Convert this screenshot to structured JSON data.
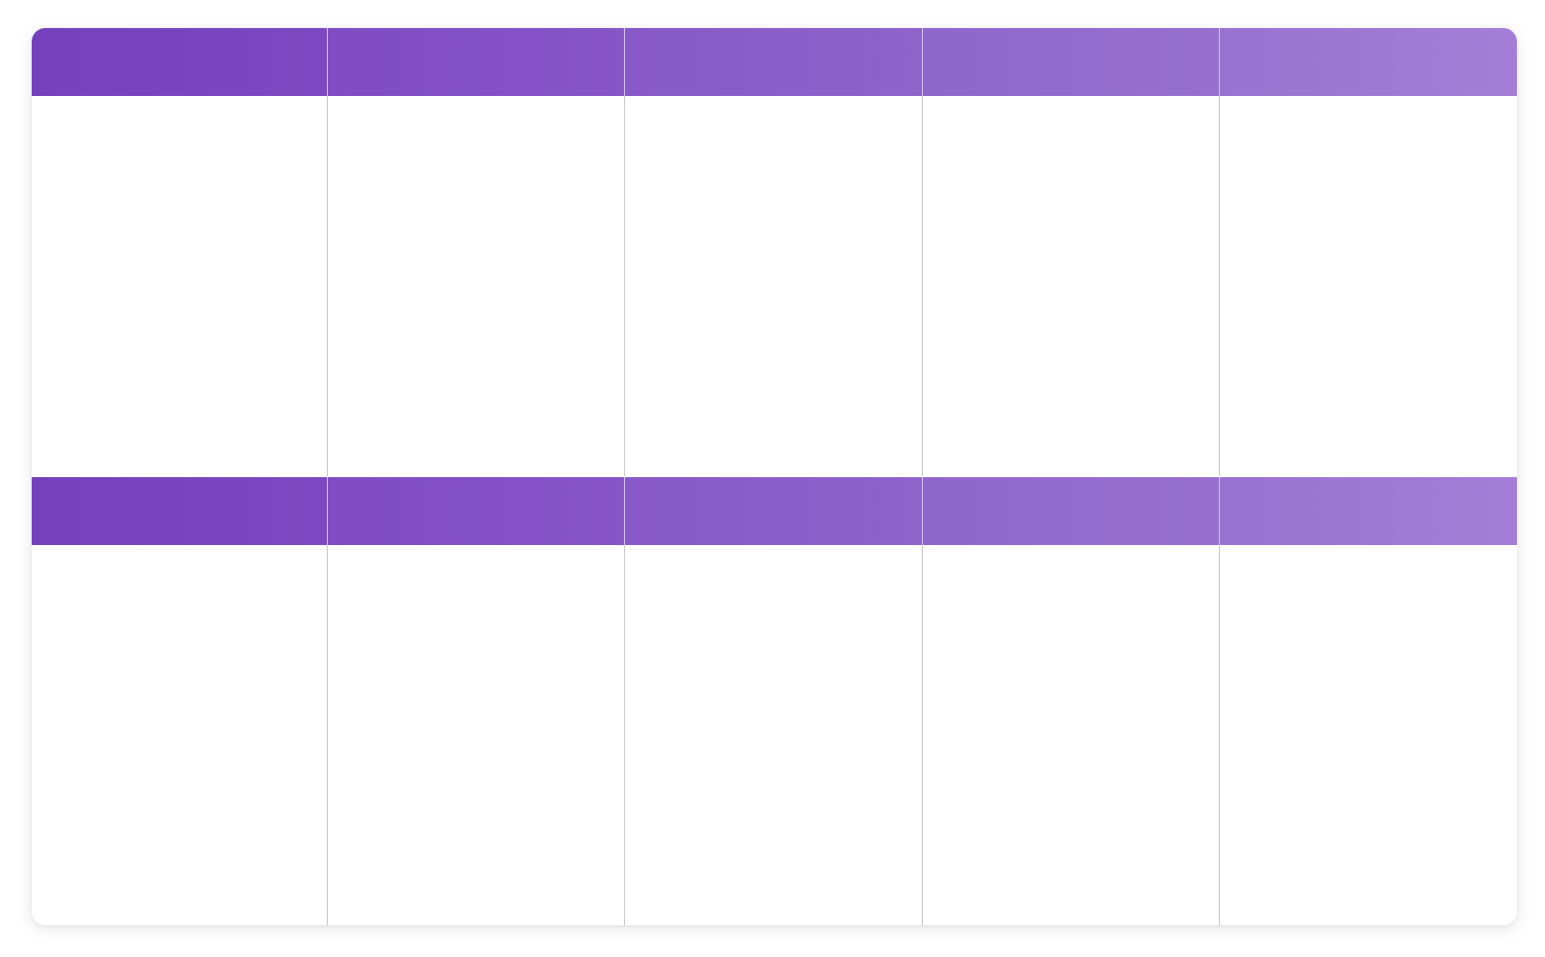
{
  "board": {
    "accent_start": "#7440bc",
    "accent_end": "#a47ed6",
    "divider_color": "#c4c4c4",
    "rows": [
      {
        "headers": [
          "",
          "",
          "",
          "",
          ""
        ],
        "cells": [
          "",
          "",
          "",
          "",
          ""
        ]
      },
      {
        "headers": [
          "",
          "",
          "",
          "",
          ""
        ],
        "cells": [
          "",
          "",
          "",
          "",
          ""
        ]
      }
    ]
  }
}
